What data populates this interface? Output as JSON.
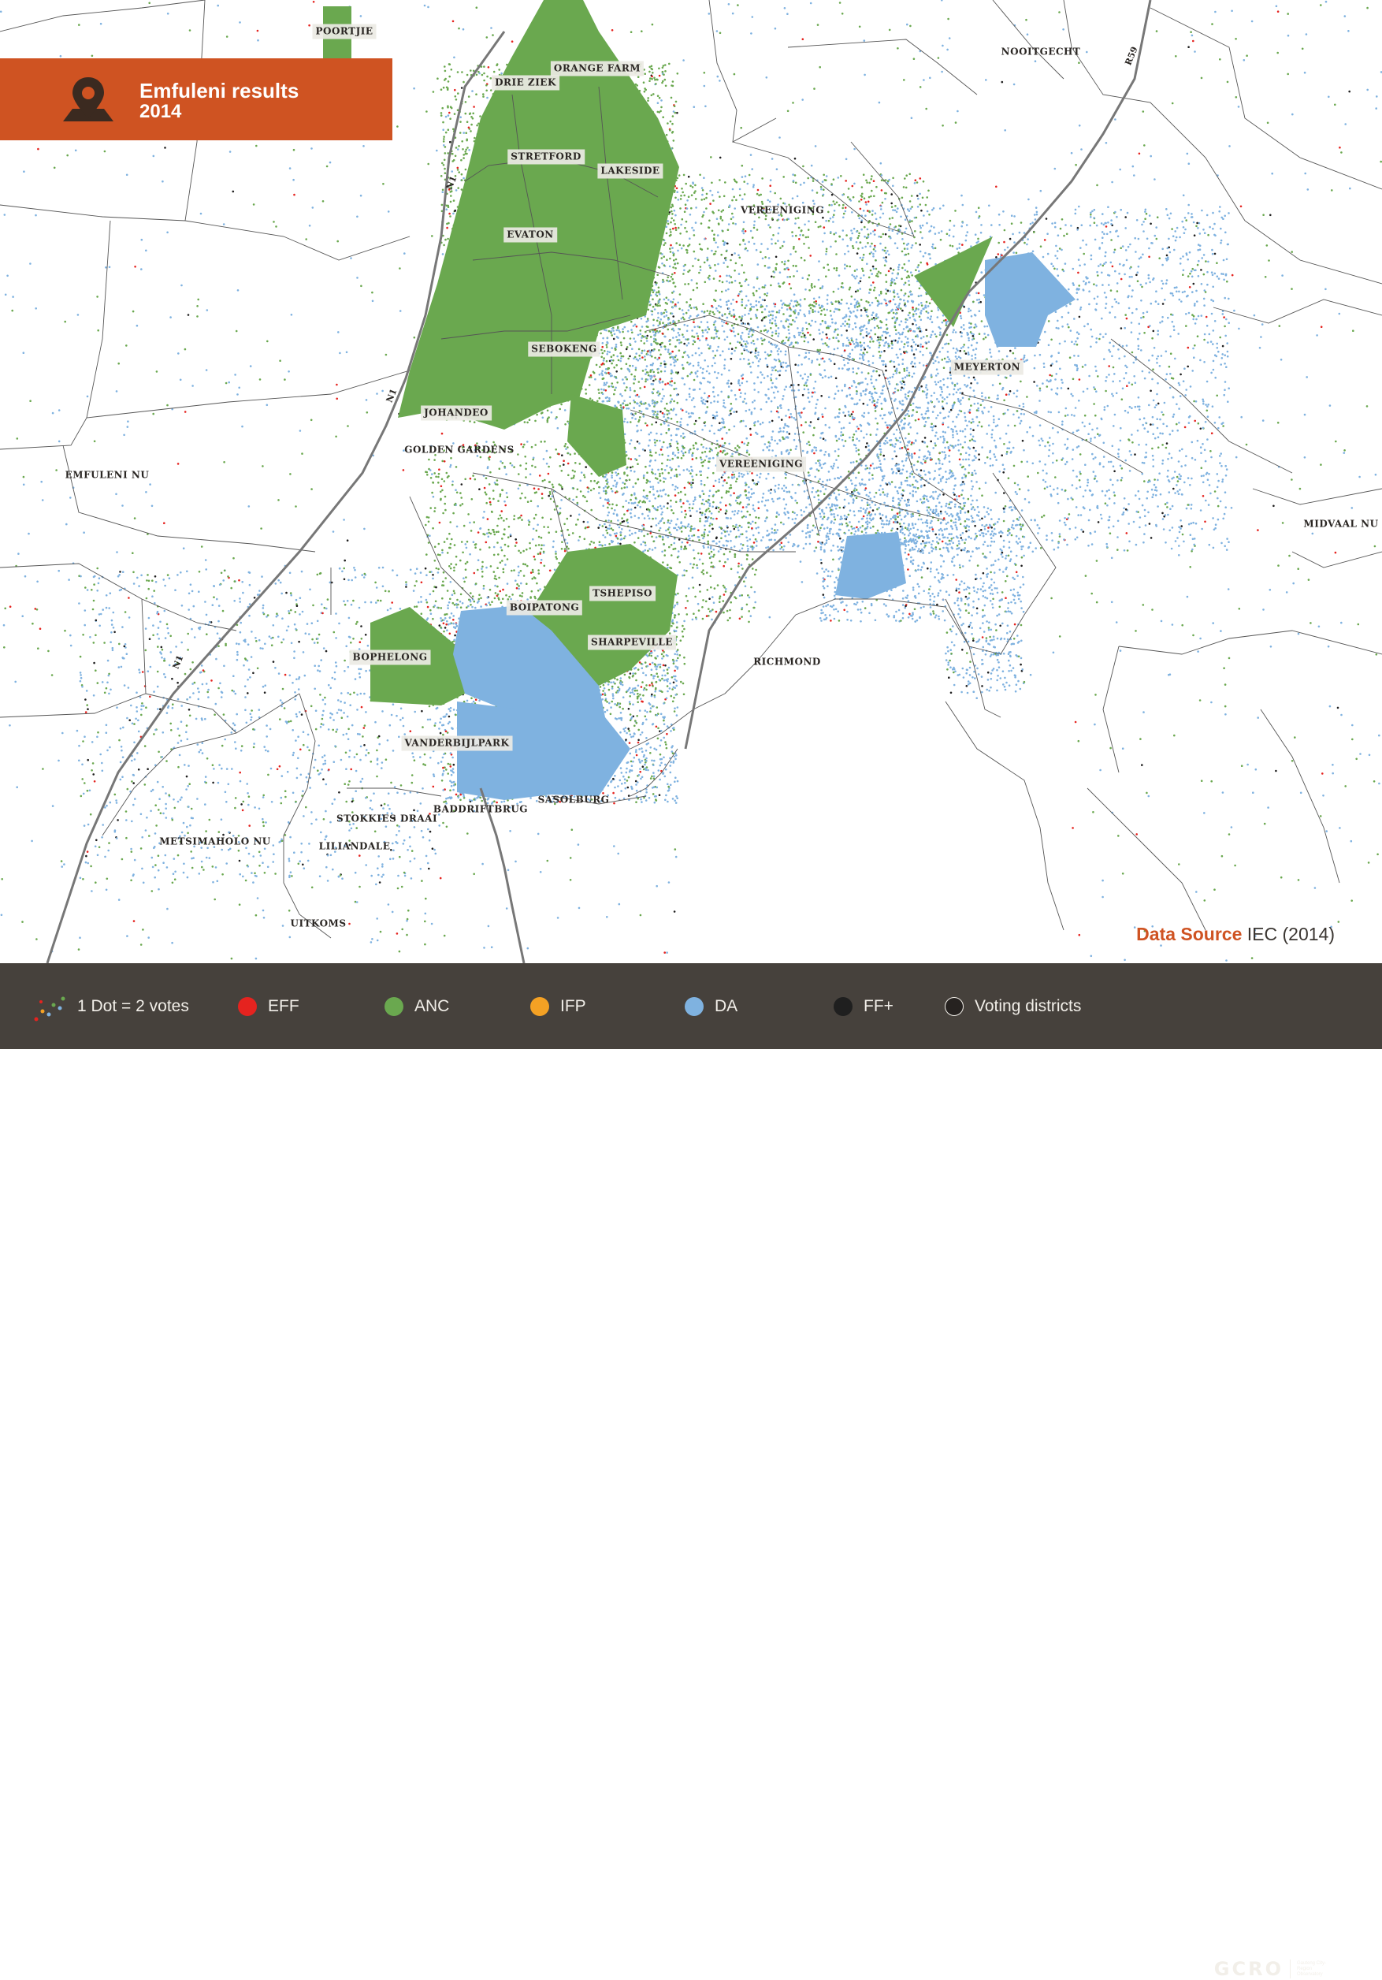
{
  "title": {
    "main": "Emfuleni results",
    "year": "2014",
    "icon": "map-pin-icon",
    "color": "#cf5322"
  },
  "data_source": {
    "label": "Data Source",
    "value": "IEC (2014)"
  },
  "places": [
    {
      "name": "POORTJIE",
      "boxed": true
    },
    {
      "name": "ORANGE FARM",
      "boxed": true
    },
    {
      "name": "DRIE ZIEK",
      "boxed": true
    },
    {
      "name": "NOOITGECHT",
      "boxed": false
    },
    {
      "name": "STRETFORD",
      "boxed": true
    },
    {
      "name": "LAKESIDE",
      "boxed": true
    },
    {
      "name": "VEREENIGING",
      "boxed": false
    },
    {
      "name": "EVATON",
      "boxed": true
    },
    {
      "name": "SEBOKENG",
      "boxed": true
    },
    {
      "name": "MEYERTON",
      "boxed": true
    },
    {
      "name": "JOHANDEO",
      "boxed": true
    },
    {
      "name": "GOLDEN GARDENS",
      "boxed": false
    },
    {
      "name": "VEREENIGING",
      "boxed": true
    },
    {
      "name": "EMFULENI NU",
      "boxed": false
    },
    {
      "name": "MIDVAAL NU",
      "boxed": false
    },
    {
      "name": "TSHEPISO",
      "boxed": true
    },
    {
      "name": "BOIPATONG",
      "boxed": true
    },
    {
      "name": "SHARPEVILLE",
      "boxed": true
    },
    {
      "name": "BOPHELONG",
      "boxed": true
    },
    {
      "name": "RICHMOND",
      "boxed": false
    },
    {
      "name": "VANDERBIJLPARK",
      "boxed": true
    },
    {
      "name": "SASOLBURG",
      "boxed": false
    },
    {
      "name": "BADDRIFTBRUG",
      "boxed": false
    },
    {
      "name": "STOKKIES DRAAI",
      "boxed": false
    },
    {
      "name": "METSIMAHOLO NU",
      "boxed": false
    },
    {
      "name": "LILIANDALE",
      "boxed": false
    },
    {
      "name": "UITKOMS",
      "boxed": false
    }
  ],
  "roads": [
    "N1",
    "N1",
    "N1",
    "R59"
  ],
  "legend": {
    "scale_label": "1 Dot = 2 votes",
    "items": [
      {
        "label": "EFF",
        "color": "#e5231f"
      },
      {
        "label": "ANC",
        "color": "#6aa84f"
      },
      {
        "label": "IFP",
        "color": "#f4a124"
      },
      {
        "label": "DA",
        "color": "#7fb2e0"
      },
      {
        "label": "FF+",
        "color": "#1f1f1f"
      },
      {
        "label": "Voting districts",
        "color": "none"
      }
    ]
  },
  "colors": {
    "anc_fill": "#6aa84f",
    "da_fill": "#7fb2e0",
    "legend_bg": "#46413c"
  },
  "logo": {
    "text": "GCRO",
    "sub": "Gauteng City-Region Observatory"
  }
}
